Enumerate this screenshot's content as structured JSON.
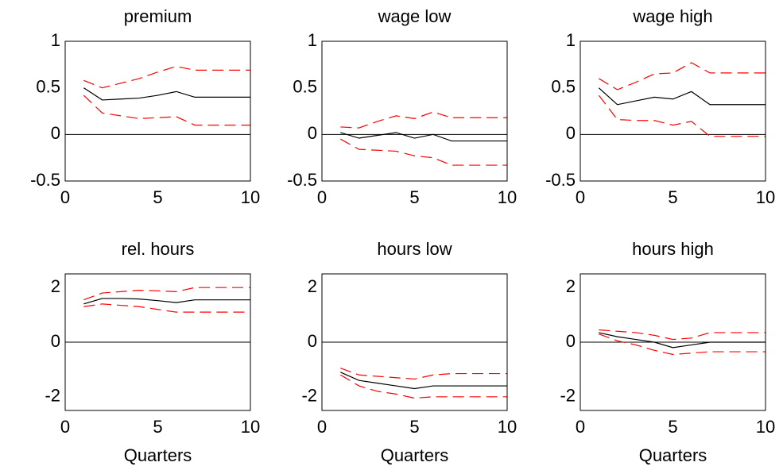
{
  "chart_data": [
    {
      "type": "line",
      "title": "premium",
      "x": [
        1,
        2,
        3,
        4,
        5,
        6,
        7,
        8,
        9,
        10
      ],
      "series": [
        {
          "color": "#000000",
          "style": "solid",
          "values": [
            0.5,
            0.37,
            0.38,
            0.39,
            0.42,
            0.46,
            0.4,
            0.4,
            0.4,
            0.4
          ]
        },
        {
          "color": "#ff0000",
          "style": "dashed",
          "values": [
            0.58,
            0.5,
            0.55,
            0.6,
            0.67,
            0.73,
            0.69,
            0.69,
            0.69,
            0.69
          ]
        },
        {
          "color": "#ff0000",
          "style": "dashed",
          "values": [
            0.42,
            0.23,
            0.2,
            0.17,
            0.18,
            0.19,
            0.1,
            0.1,
            0.1,
            0.1
          ]
        }
      ],
      "hlines": [
        0
      ],
      "xlim": [
        0,
        10
      ],
      "ylim": [
        -0.5,
        1
      ],
      "xticks": [
        0,
        5,
        10
      ],
      "yticks": [
        -0.5,
        0,
        0.5,
        1
      ]
    },
    {
      "type": "line",
      "title": "wage low",
      "x": [
        1,
        2,
        3,
        4,
        5,
        6,
        7,
        8,
        9,
        10
      ],
      "series": [
        {
          "color": "#000000",
          "style": "solid",
          "values": [
            0.02,
            -0.04,
            -0.01,
            0.02,
            -0.04,
            0.0,
            -0.07,
            -0.07,
            -0.07,
            -0.07
          ]
        },
        {
          "color": "#ff0000",
          "style": "dashed",
          "values": [
            0.08,
            0.07,
            0.14,
            0.2,
            0.17,
            0.24,
            0.18,
            0.18,
            0.18,
            0.18
          ]
        },
        {
          "color": "#ff0000",
          "style": "dashed",
          "values": [
            -0.05,
            -0.16,
            -0.17,
            -0.18,
            -0.23,
            -0.25,
            -0.33,
            -0.33,
            -0.33,
            -0.33
          ]
        }
      ],
      "hlines": [
        0
      ],
      "xlim": [
        0,
        10
      ],
      "ylim": [
        -0.5,
        1
      ],
      "xticks": [
        0,
        5,
        10
      ],
      "yticks": [
        -0.5,
        0,
        0.5,
        1
      ]
    },
    {
      "type": "line",
      "title": "wage high",
      "x": [
        1,
        2,
        3,
        4,
        5,
        6,
        7,
        8,
        9,
        10
      ],
      "series": [
        {
          "color": "#000000",
          "style": "solid",
          "values": [
            0.5,
            0.32,
            0.36,
            0.4,
            0.38,
            0.46,
            0.32,
            0.32,
            0.32,
            0.32
          ]
        },
        {
          "color": "#ff0000",
          "style": "dashed",
          "values": [
            0.6,
            0.48,
            0.56,
            0.65,
            0.66,
            0.77,
            0.66,
            0.66,
            0.66,
            0.66
          ]
        },
        {
          "color": "#ff0000",
          "style": "dashed",
          "values": [
            0.42,
            0.16,
            0.15,
            0.15,
            0.1,
            0.14,
            -0.02,
            -0.02,
            -0.02,
            -0.02
          ]
        }
      ],
      "hlines": [
        0
      ],
      "xlim": [
        0,
        10
      ],
      "ylim": [
        -0.5,
        1
      ],
      "xticks": [
        0,
        5,
        10
      ],
      "yticks": [
        -0.5,
        0,
        0.5,
        1
      ]
    },
    {
      "type": "line",
      "title": "rel. hours",
      "xlabel": "Quarters",
      "x": [
        1,
        2,
        3,
        4,
        5,
        6,
        7,
        8,
        9,
        10
      ],
      "series": [
        {
          "color": "#000000",
          "style": "solid",
          "values": [
            1.4,
            1.6,
            1.6,
            1.58,
            1.52,
            1.45,
            1.55,
            1.55,
            1.55,
            1.55
          ]
        },
        {
          "color": "#ff0000",
          "style": "dashed",
          "values": [
            1.55,
            1.8,
            1.85,
            1.9,
            1.88,
            1.85,
            2.0,
            2.0,
            2.0,
            2.0
          ]
        },
        {
          "color": "#ff0000",
          "style": "dashed",
          "values": [
            1.3,
            1.4,
            1.35,
            1.3,
            1.2,
            1.1,
            1.1,
            1.1,
            1.1,
            1.1
          ]
        }
      ],
      "hlines": [
        0
      ],
      "xlim": [
        0,
        10
      ],
      "ylim": [
        -2.5,
        2.5
      ],
      "xticks": [
        0,
        5,
        10
      ],
      "yticks": [
        -2,
        0,
        2
      ]
    },
    {
      "type": "line",
      "title": "hours low",
      "xlabel": "Quarters",
      "x": [
        1,
        2,
        3,
        4,
        5,
        6,
        7,
        8,
        9,
        10
      ],
      "series": [
        {
          "color": "#000000",
          "style": "solid",
          "values": [
            -1.1,
            -1.4,
            -1.5,
            -1.6,
            -1.7,
            -1.6,
            -1.6,
            -1.6,
            -1.6,
            -1.6
          ]
        },
        {
          "color": "#ff0000",
          "style": "dashed",
          "values": [
            -0.95,
            -1.2,
            -1.25,
            -1.3,
            -1.35,
            -1.2,
            -1.15,
            -1.15,
            -1.15,
            -1.15
          ]
        },
        {
          "color": "#ff0000",
          "style": "dashed",
          "values": [
            -1.2,
            -1.6,
            -1.8,
            -1.9,
            -2.05,
            -2.0,
            -2.0,
            -2.0,
            -2.0,
            -2.0
          ]
        }
      ],
      "hlines": [
        0
      ],
      "xlim": [
        0,
        10
      ],
      "ylim": [
        -2.5,
        2.5
      ],
      "xticks": [
        0,
        5,
        10
      ],
      "yticks": [
        -2,
        0,
        2
      ]
    },
    {
      "type": "line",
      "title": "hours high",
      "xlabel": "Quarters",
      "x": [
        1,
        2,
        3,
        4,
        5,
        6,
        7,
        8,
        9,
        10
      ],
      "series": [
        {
          "color": "#000000",
          "style": "solid",
          "values": [
            0.35,
            0.2,
            0.1,
            0.0,
            -0.2,
            -0.1,
            0,
            0,
            0,
            0
          ]
        },
        {
          "color": "#ff0000",
          "style": "dashed",
          "values": [
            0.45,
            0.4,
            0.35,
            0.25,
            0.1,
            0.15,
            0.35,
            0.35,
            0.35,
            0.35
          ]
        },
        {
          "color": "#ff0000",
          "style": "dashed",
          "values": [
            0.3,
            0.05,
            -0.1,
            -0.3,
            -0.45,
            -0.4,
            -0.35,
            -0.35,
            -0.35,
            -0.35
          ]
        }
      ],
      "hlines": [
        0
      ],
      "xlim": [
        0,
        10
      ],
      "ylim": [
        -2.5,
        2.5
      ],
      "xticks": [
        0,
        5,
        10
      ],
      "yticks": [
        -2,
        0,
        2
      ]
    }
  ]
}
